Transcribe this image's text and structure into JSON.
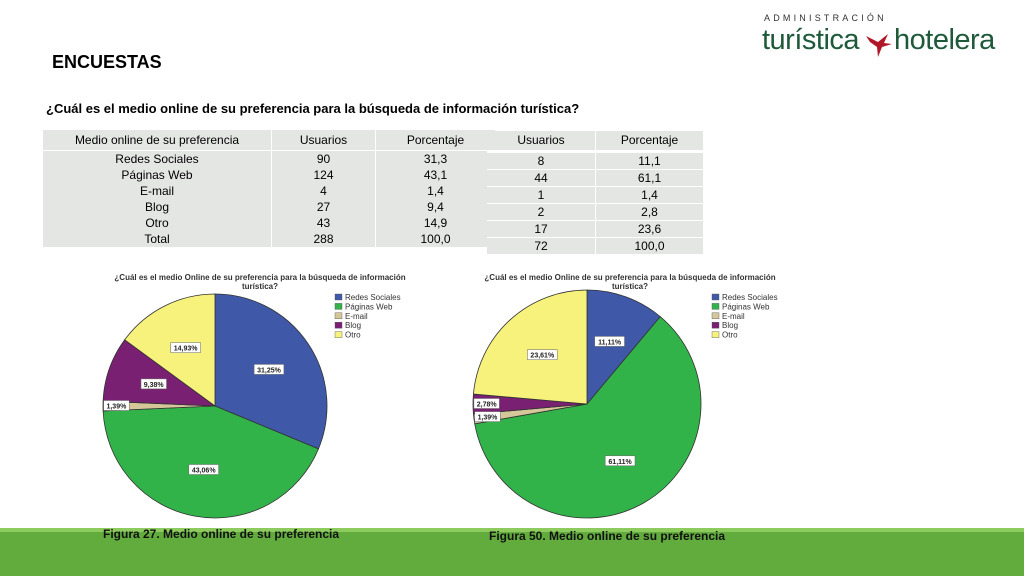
{
  "logo": {
    "line1": "ADMINISTRACIÓN",
    "word1": "turística",
    "word2": "hotelera"
  },
  "title": "ENCUESTAS",
  "question": "¿Cuál es el medio online de su preferencia para la búsqueda de información turística?",
  "table1": {
    "headers": [
      "Medio online de su preferencia",
      "Usuarios",
      "Porcentaje"
    ],
    "rows": [
      [
        "Redes Sociales",
        "90",
        "31,3"
      ],
      [
        "Páginas Web",
        "124",
        "43,1"
      ],
      [
        "E-mail",
        "4",
        "1,4"
      ],
      [
        "Blog",
        "27",
        "9,4"
      ],
      [
        "Otro",
        "43",
        "14,9"
      ],
      [
        "Total",
        "288",
        "100,0"
      ]
    ]
  },
  "table2": {
    "headers": [
      "Usuarios",
      "Porcentaje"
    ],
    "rows": [
      [
        "8",
        "11,1"
      ],
      [
        "44",
        "61,1"
      ],
      [
        "1",
        "1,4"
      ],
      [
        "2",
        "2,8"
      ],
      [
        "17",
        "23,6"
      ],
      [
        "72",
        "100,0"
      ]
    ]
  },
  "colors": {
    "redes": "#3f58a8",
    "web": "#31b34a",
    "email": "#d6c79a",
    "blog": "#7a2072",
    "otro": "#f6f27c",
    "green_bar": "#62ac3e",
    "logo_green": "#1e5a3a",
    "bird_red": "#b0182a"
  },
  "chart_data": [
    {
      "type": "pie",
      "title_lines": [
        "¿Cuál es el medio Online de su preferencia para la búsqueda de información",
        "turística?"
      ],
      "categories": [
        "Redes Sociales",
        "Páginas Web",
        "E-mail",
        "Blog",
        "Otro"
      ],
      "values": [
        31.25,
        43.06,
        1.39,
        9.38,
        14.93
      ],
      "labels": [
        "31,25%",
        "43,06%",
        "1,39%",
        "9,38%",
        "14,93%"
      ],
      "legend_position": "right",
      "caption": "Figura 27. Medio online de su preferencia"
    },
    {
      "type": "pie",
      "title_lines": [
        "¿Cuál es el medio Online de su preferencia para la búsqueda de información",
        "turística?"
      ],
      "categories": [
        "Redes Sociales",
        "Páginas Web",
        "E-mail",
        "Blog",
        "Otro"
      ],
      "values": [
        11.11,
        61.11,
        1.39,
        2.78,
        23.61
      ],
      "labels": [
        "11,11%",
        "61,11%",
        "1,39%",
        "2,78%",
        "23,61%"
      ],
      "legend_position": "right",
      "caption": "Figura 50. Medio online de su preferencia"
    }
  ]
}
